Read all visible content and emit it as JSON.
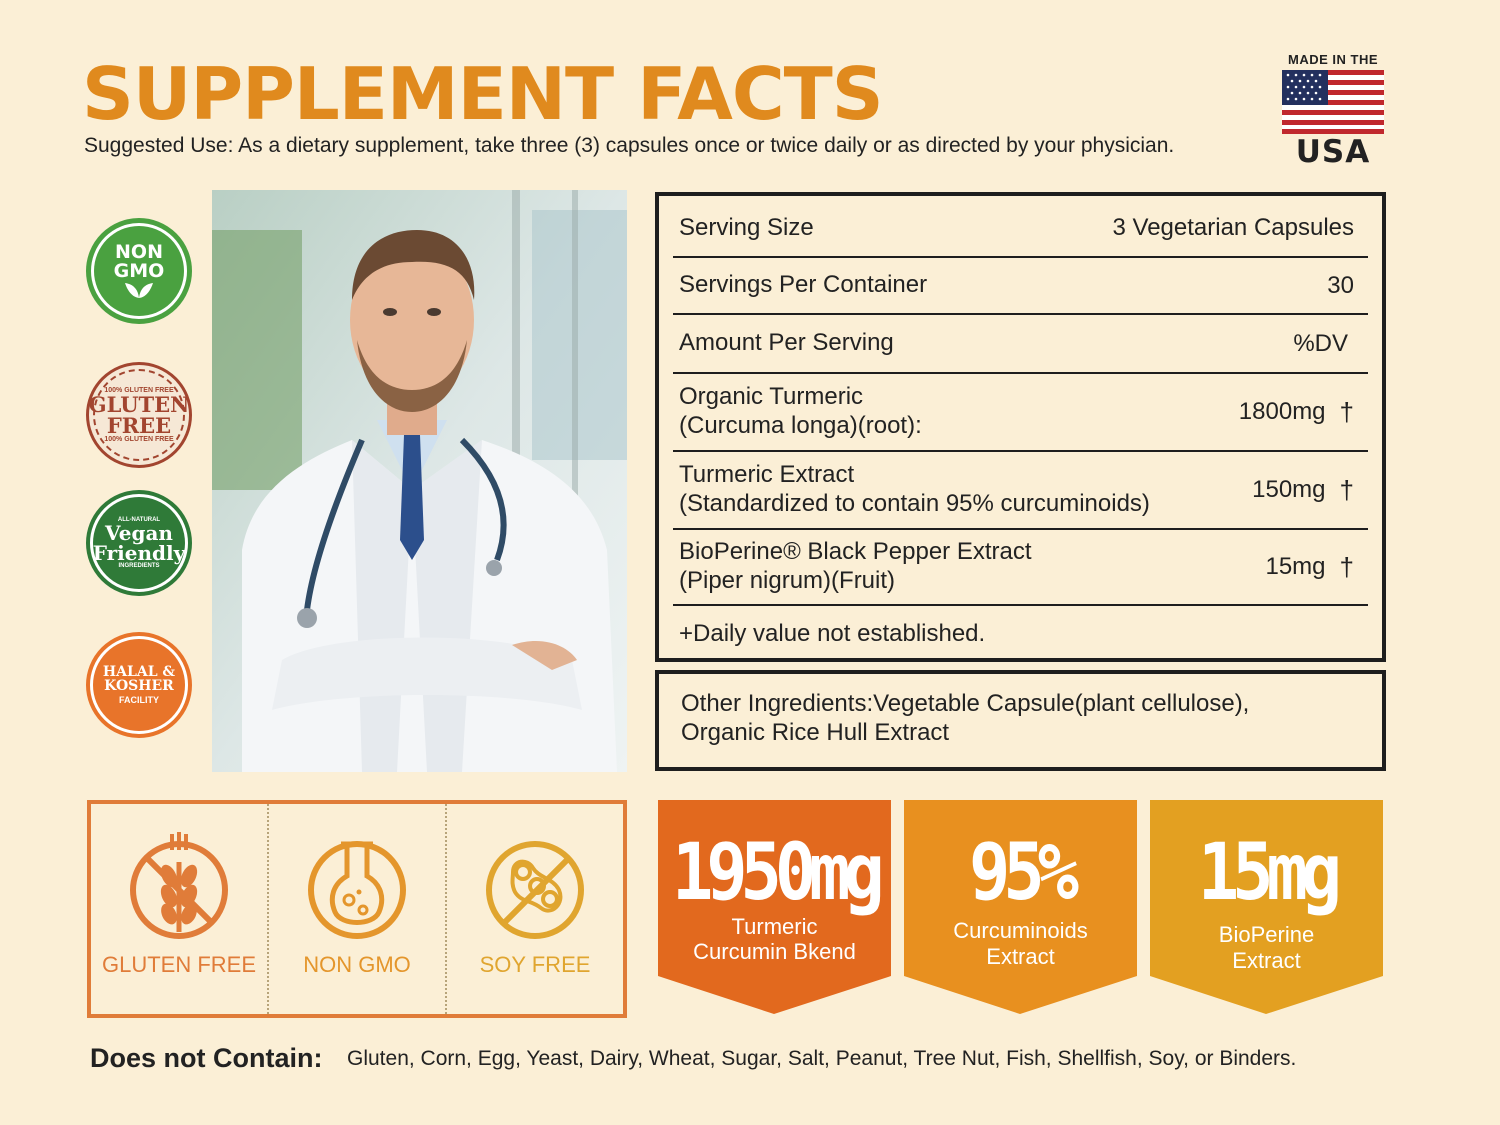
{
  "header": {
    "title": "SUPPLEMENT FACTS",
    "suggested_use": "Suggested Use: As a dietary supplement, take three (3) capsules once or twice daily or as directed by your physician."
  },
  "usa_badge": {
    "top": "MADE IN THE",
    "bottom": "USA"
  },
  "badges": {
    "non_gmo": [
      "NON",
      "GMO"
    ],
    "gluten_free": {
      "top": "100% GLUTEN FREE",
      "main1": "GLUTEN",
      "main2": "FREE",
      "bottom": "100% GLUTEN FREE"
    },
    "vegan": {
      "top": "ALL-NATURAL",
      "main1": "Vegan",
      "main2": "Friendly",
      "bottom": "INGREDIENTS"
    },
    "halal": {
      "line1": "HALAL &",
      "line2": "KOSHER",
      "line3": "FACILITY"
    }
  },
  "facts": {
    "rows": [
      {
        "label": "Serving Size",
        "value": "3 Vegetarian Capsules"
      },
      {
        "label": "Servings Per Container",
        "value": "30"
      },
      {
        "label": "Amount Per Serving",
        "value": "%DV"
      },
      {
        "label": "Organic Turmeric",
        "label2": "(Curcuma longa)(root):",
        "value": "1800mg",
        "mark": "†"
      },
      {
        "label": "Turmeric Extract",
        "label2": "(Standardized to contain 95% curcuminoids)",
        "value": "150mg",
        "mark": "†"
      },
      {
        "label": "BioPerine® Black Pepper Extract",
        "label2": "(Piper nigrum)(Fruit)",
        "value": "15mg",
        "mark": "†"
      }
    ],
    "footnote": "+Daily value not established."
  },
  "other_ingredients": {
    "line1": "Other Ingredients:Vegetable Capsule(plant cellulose),",
    "line2": "Organic Rice Hull Extract"
  },
  "free_from": [
    {
      "label": "GLUTEN FREE",
      "color": "#e07c39",
      "icon": "wheat-slash-icon"
    },
    {
      "label": "NON GMO",
      "color": "#e4962c",
      "icon": "flask-icon"
    },
    {
      "label": "SOY FREE",
      "color": "#e0a52f",
      "icon": "soy-slash-icon"
    }
  ],
  "stats": [
    {
      "big": "1950mg",
      "sub1": "Turmeric",
      "sub2": "Curcumin Bkend",
      "color": "#e2691e"
    },
    {
      "big": "95%",
      "sub1": "Curcuminoids",
      "sub2": "Extract",
      "color": "#e8901f"
    },
    {
      "big": "15mg",
      "sub1": "BioPerine",
      "sub2": "Extract",
      "color": "#e3a021"
    }
  ],
  "does_not_contain": {
    "label": "Does not Contain:",
    "list": "Gluten, Corn, Egg, Yeast, Dairy, Wheat, Sugar, Salt, Peanut, Tree Nut, Fish, Shellfish, Soy, or Binders."
  }
}
